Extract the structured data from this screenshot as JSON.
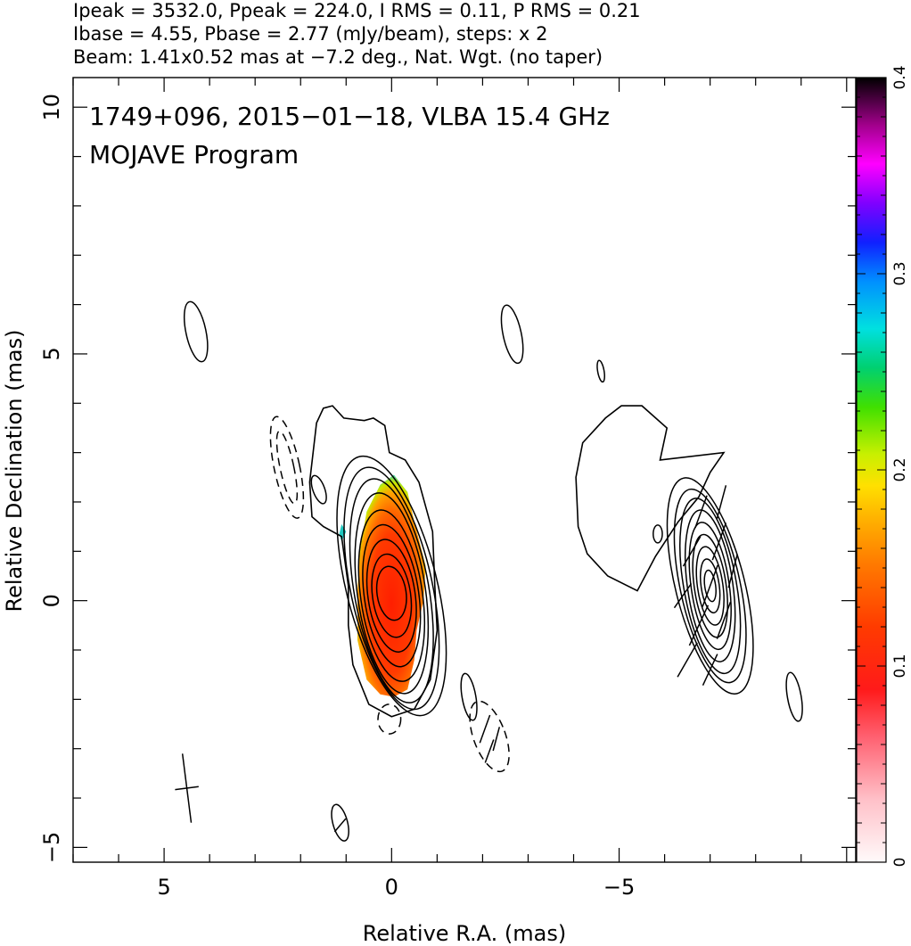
{
  "header": {
    "line1": "Ipeak = 3532.0, Ppeak = 224.0, I RMS = 0.11, P RMS = 0.21",
    "line2": "Ibase = 4.55, Pbase = 2.77 (mJy/beam), steps: x 2",
    "line3": "Beam: 1.41x0.52 mas at −7.2 deg., Nat. Wgt. (no taper)"
  },
  "chart_data": {
    "type": "heatmap",
    "title": "1749+096, 2015−01−18, VLBA 15.4 GHz",
    "subtitle": "MOJAVE Program",
    "xlabel": "Relative R.A. (mas)",
    "ylabel": "Relative Declination (mas)",
    "xlim": [
      7.0,
      -10.2
    ],
    "ylim": [
      -5.3,
      10.6
    ],
    "x_ticks": [
      {
        "value": 5,
        "label": "5"
      },
      {
        "value": 0,
        "label": "0"
      },
      {
        "value": -5,
        "label": "−5"
      }
    ],
    "y_ticks": [
      {
        "value": -5,
        "label": "−5"
      },
      {
        "value": 0,
        "label": "0"
      },
      {
        "value": 5,
        "label": "5"
      },
      {
        "value": 10,
        "label": "10"
      }
    ],
    "colorbar": {
      "range": [
        0,
        0.4
      ],
      "ticks": [
        {
          "value": 0,
          "label": "0"
        },
        {
          "value": 0.1,
          "label": "0.1"
        },
        {
          "value": 0.2,
          "label": "0.2"
        },
        {
          "value": 0.3,
          "label": "0.3"
        },
        {
          "value": 0.4,
          "label": "0.4"
        }
      ]
    },
    "images": [
      {
        "name": "total intensity + fractional polarization",
        "center": [
          0,
          0
        ]
      },
      {
        "name": "polarization vectors",
        "center": [
          -7.0,
          0.3
        ]
      }
    ],
    "intensity_contours": [
      {
        "x": 0.0,
        "y": 0.15,
        "rx": 0.32,
        "ry": 0.55,
        "rot": -8
      },
      {
        "x": 0.0,
        "y": 0.1,
        "rx": 0.42,
        "ry": 0.85,
        "rot": -8
      },
      {
        "x": 0.0,
        "y": 0.1,
        "rx": 0.52,
        "ry": 1.15,
        "rot": -8
      },
      {
        "x": 0.0,
        "y": 0.1,
        "rx": 0.6,
        "ry": 1.45,
        "rot": -8
      },
      {
        "x": 0.0,
        "y": 0.1,
        "rx": 0.68,
        "ry": 1.75,
        "rot": -8
      },
      {
        "x": 0.0,
        "y": 0.15,
        "rx": 0.75,
        "ry": 2.05,
        "rot": -8
      },
      {
        "x": 0.0,
        "y": 0.2,
        "rx": 0.82,
        "ry": 2.3,
        "rot": -10
      },
      {
        "x": 0.0,
        "y": 0.25,
        "rx": 0.9,
        "ry": 2.5,
        "rot": -12
      },
      {
        "x": 0.0,
        "y": 0.3,
        "rx": 1.0,
        "ry": 2.7,
        "rot": -14
      },
      {
        "x": 4.3,
        "y": 5.45,
        "rx": 0.22,
        "ry": 0.62,
        "rot": -12
      },
      {
        "x": -2.65,
        "y": 5.4,
        "rx": 0.2,
        "ry": 0.6,
        "rot": -12
      },
      {
        "x": -4.6,
        "y": 4.65,
        "rx": 0.07,
        "ry": 0.22,
        "rot": -10
      },
      {
        "x": 1.6,
        "y": 2.25,
        "rx": 0.13,
        "ry": 0.3,
        "rot": -20
      },
      {
        "x": -1.7,
        "y": -1.95,
        "rx": 0.15,
        "ry": 0.48,
        "rot": -10
      },
      {
        "x": 1.13,
        "y": -4.5,
        "rx": 0.16,
        "ry": 0.38,
        "rot": -15
      },
      {
        "x": -8.85,
        "y": -1.95,
        "rx": 0.15,
        "ry": 0.5,
        "rot": -10
      },
      {
        "x": -5.85,
        "y": 1.35,
        "rx": 0.1,
        "ry": 0.18,
        "rot": 0
      },
      {
        "x": -7.0,
        "y": 0.3,
        "rx": 0.12,
        "ry": 0.32,
        "rot": -8
      },
      {
        "x": -7.0,
        "y": 0.3,
        "rx": 0.2,
        "ry": 0.55,
        "rot": -8
      },
      {
        "x": -7.0,
        "y": 0.3,
        "rx": 0.28,
        "ry": 0.8,
        "rot": -8
      },
      {
        "x": -7.0,
        "y": 0.3,
        "rx": 0.35,
        "ry": 1.05,
        "rot": -8
      },
      {
        "x": -7.0,
        "y": 0.3,
        "rx": 0.42,
        "ry": 1.3,
        "rot": -8
      },
      {
        "x": -7.0,
        "y": 0.3,
        "rx": 0.5,
        "ry": 1.55,
        "rot": -8
      },
      {
        "x": -7.0,
        "y": 0.3,
        "rx": 0.58,
        "ry": 1.8,
        "rot": -10
      },
      {
        "x": -7.0,
        "y": 0.3,
        "rx": 0.66,
        "ry": 2.0,
        "rot": -12
      },
      {
        "x": -7.0,
        "y": 0.3,
        "rx": 0.76,
        "ry": 2.25,
        "rot": -14
      }
    ],
    "negative_contours": [
      {
        "x": 2.3,
        "y": 2.7,
        "rx": 0.28,
        "ry": 1.05,
        "rot": -12
      },
      {
        "x": 2.3,
        "y": 2.7,
        "rx": 0.15,
        "ry": 0.75,
        "rot": -12
      },
      {
        "x": 0.05,
        "y": -2.4,
        "rx": 0.25,
        "ry": 0.3,
        "rot": 0
      },
      {
        "x": -2.15,
        "y": -2.75,
        "rx": 0.35,
        "ry": 0.75,
        "rot": -20
      }
    ],
    "outer_shape": [
      [
        -0.3,
        2.85
      ],
      [
        -0.6,
        2.4
      ],
      [
        -0.9,
        1.4
      ],
      [
        -0.95,
        0.3
      ],
      [
        -1.0,
        -0.6
      ],
      [
        -0.85,
        -1.6
      ],
      [
        -0.5,
        -2.2
      ],
      [
        0.0,
        -2.35
      ],
      [
        0.5,
        -2.1
      ],
      [
        0.85,
        -1.3
      ],
      [
        0.95,
        -0.5
      ],
      [
        0.95,
        0.3
      ],
      [
        1.1,
        1.3
      ],
      [
        1.5,
        1.5
      ],
      [
        1.75,
        1.7
      ],
      [
        1.8,
        2.4
      ],
      [
        1.65,
        3.6
      ],
      [
        1.5,
        3.9
      ],
      [
        1.3,
        3.95
      ],
      [
        1.05,
        3.7
      ],
      [
        0.6,
        3.65
      ],
      [
        0.4,
        3.7
      ],
      [
        0.15,
        3.55
      ],
      [
        0.05,
        3.0
      ]
    ],
    "outer_shape_2": [
      [
        -5.9,
        2.85
      ],
      [
        -6.05,
        3.5
      ],
      [
        -5.5,
        3.95
      ],
      [
        -5.05,
        3.95
      ],
      [
        -4.7,
        3.7
      ],
      [
        -4.2,
        3.2
      ],
      [
        -4.05,
        2.5
      ],
      [
        -4.1,
        1.5
      ],
      [
        -4.3,
        0.95
      ],
      [
        -4.75,
        0.5
      ],
      [
        -5.4,
        0.2
      ],
      [
        -5.8,
        0.9
      ],
      [
        -6.3,
        1.6
      ],
      [
        -6.75,
        2.1
      ],
      [
        -7.0,
        2.6
      ],
      [
        -7.3,
        3.0
      ]
    ],
    "pol_patch": [
      [
        -0.05,
        2.55
      ],
      [
        0.25,
        2.35
      ],
      [
        0.55,
        1.8
      ],
      [
        0.7,
        1.0
      ],
      [
        0.75,
        0.2
      ],
      [
        0.75,
        -0.8
      ],
      [
        0.55,
        -1.6
      ],
      [
        0.25,
        -1.9
      ],
      [
        -0.05,
        -1.95
      ],
      [
        -0.35,
        -1.8
      ],
      [
        -0.5,
        -1.2
      ],
      [
        -0.55,
        -0.6
      ],
      [
        -0.7,
        0.0
      ],
      [
        -0.75,
        0.7
      ],
      [
        -0.5,
        1.6
      ],
      [
        -0.35,
        2.2
      ]
    ],
    "pol_patch_small": [
      [
        1.1,
        1.55
      ],
      [
        1.0,
        1.4
      ],
      [
        1.1,
        1.2
      ],
      [
        1.15,
        1.35
      ]
    ],
    "pol_vectors": [
      {
        "x": -7.0,
        "y": 0.3,
        "len": 0.9,
        "rot": 20
      },
      {
        "x": -6.75,
        "y": -0.5,
        "len": 0.9,
        "rot": 25
      },
      {
        "x": -7.2,
        "y": 1.2,
        "len": 0.8,
        "rot": 20
      },
      {
        "x": -6.6,
        "y": 1.0,
        "len": 0.7,
        "rot": 30
      },
      {
        "x": -7.3,
        "y": -0.4,
        "len": 0.8,
        "rot": 20
      },
      {
        "x": -6.8,
        "y": 1.8,
        "len": 0.7,
        "rot": 20
      },
      {
        "x": -7.25,
        "y": 2.0,
        "len": 0.7,
        "rot": 15
      },
      {
        "x": -6.5,
        "y": -1.2,
        "len": 0.8,
        "rot": 30
      },
      {
        "x": -7.0,
        "y": -1.4,
        "len": 0.7,
        "rot": 25
      },
      {
        "x": -7.5,
        "y": 0.6,
        "len": 0.7,
        "rot": 15
      },
      {
        "x": -6.4,
        "y": 0.1,
        "len": 0.6,
        "rot": 35
      },
      {
        "x": -2.05,
        "y": -2.6,
        "len": 0.6,
        "rot": 20
      },
      {
        "x": -2.3,
        "y": -2.8,
        "len": 0.5,
        "rot": 15
      },
      {
        "x": -2.15,
        "y": -3.05,
        "len": 0.5,
        "rot": 20
      },
      {
        "x": 1.13,
        "y": -4.55,
        "len": 0.35,
        "rot": 40
      }
    ],
    "beam": {
      "x": 4.5,
      "y": -3.8,
      "major": 1.41,
      "minor": 0.52,
      "pa_deg": -7.2
    },
    "grid": false,
    "legend": "colorbar right"
  },
  "colors": {
    "contour": "#000000",
    "background": "#ffffff"
  }
}
